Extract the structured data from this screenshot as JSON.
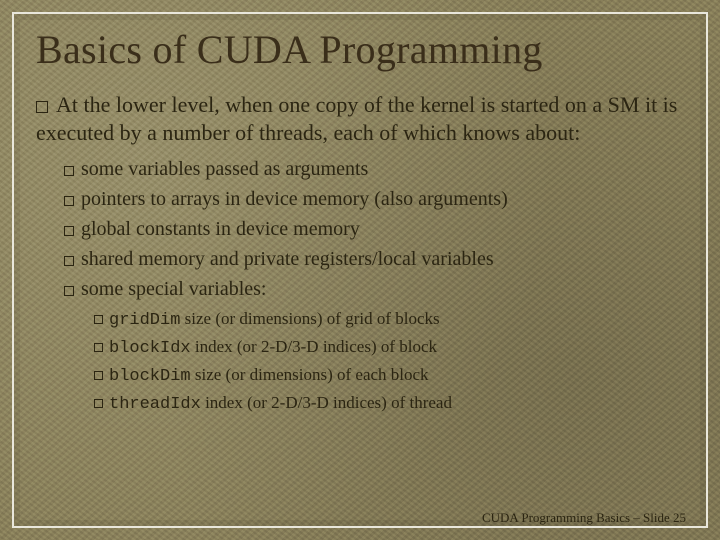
{
  "colors": {
    "background_base": "#8a8468",
    "frame_border": "#e9e7dc",
    "text": "#2b2512",
    "title": "#3a2e1a"
  },
  "typography": {
    "title_fontsize": 40,
    "level1_fontsize": 22,
    "level2_fontsize": 20,
    "level3_fontsize": 17,
    "footer_fontsize": 13,
    "font_family_body": "Georgia",
    "font_family_code": "Courier New"
  },
  "title": "Basics of CUDA Programming",
  "body": {
    "intro": "At the lower level, when one copy of the kernel is started on a SM it is executed by a number of threads, each of which knows about:",
    "items": [
      "some variables passed as arguments",
      "pointers to arrays in device memory (also arguments)",
      "global constants in device memory",
      "shared memory and private registers/local variables",
      "some special variables:"
    ],
    "specials": [
      {
        "code": "gridDim",
        "desc": " size (or dimensions) of grid of blocks"
      },
      {
        "code": "blockIdx",
        "desc": " index (or 2-D/3-D indices) of block"
      },
      {
        "code": "blockDim",
        "desc": " size (or dimensions) of each block"
      },
      {
        "code": "threadIdx",
        "desc": " index (or 2-D/3-D indices) of thread"
      }
    ]
  },
  "footer": "CUDA Programming Basics – Slide  25"
}
